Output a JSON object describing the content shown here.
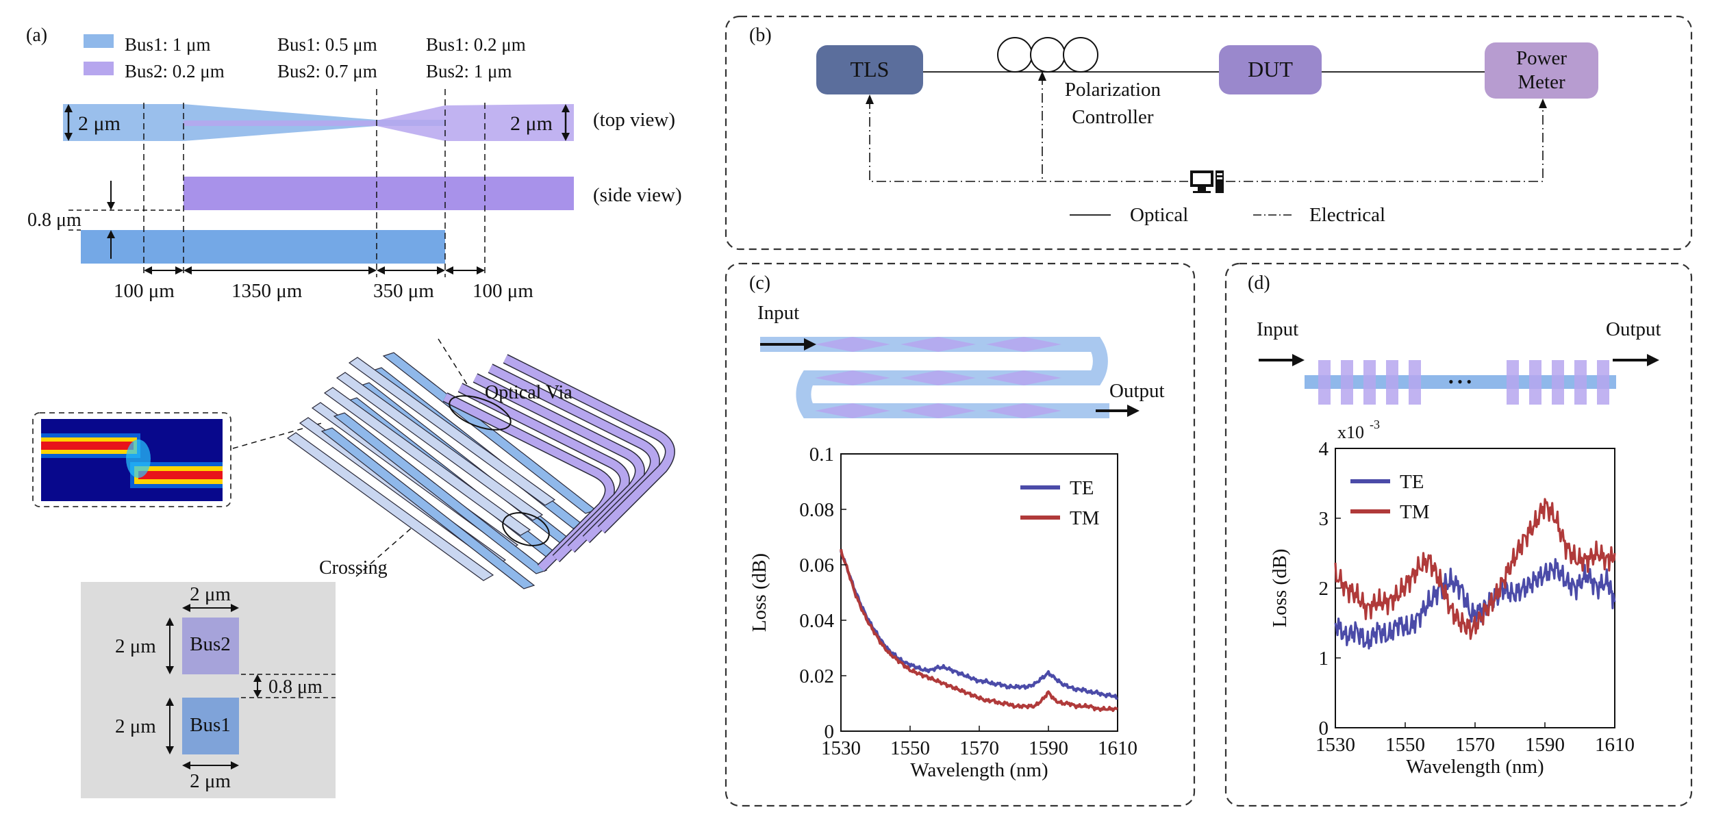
{
  "colors": {
    "bus1": "#8fb8ea",
    "bus2": "#b6a6ee",
    "side_bus2": "#a892ea",
    "side_bus1": "#74a8e6",
    "tls": "#5b6e9c",
    "dut": "#9a88cc",
    "power": "#b79cd0",
    "te": "#4b4ba8",
    "tm": "#b03a3a",
    "crossing_bg": "#dcdcdc",
    "cross_bus2": "#a6a3da",
    "cross_bus1": "#7fa3d9"
  },
  "panel_a": {
    "label": "(a)",
    "legend": {
      "bus1_items": [
        "Bus1: 1 μm",
        "Bus1: 0.5 μm",
        "Bus1: 0.2 μm"
      ],
      "bus2_items": [
        "Bus2: 0.2 μm",
        "Bus2: 0.7 μm",
        "Bus2: 1 μm"
      ]
    },
    "top_view_label": "(top view)",
    "side_view_label": "(side view)",
    "width_left": "2 μm",
    "width_right": "2 μm",
    "gap_label": "0.8 μm",
    "lengths": [
      "100 μm",
      "1350 μm",
      "350 μm",
      "100 μm"
    ],
    "optical_via_label": "Optical Via",
    "crossing_label": "Crossing",
    "crossing": {
      "width_top": "2 μm",
      "width_bottom": "2 μm",
      "height_bus2": "2 μm",
      "height_bus1": "2 μm",
      "gap": "0.8 μm",
      "bus2_label": "Bus2",
      "bus1_label": "Bus1"
    }
  },
  "panel_b": {
    "label": "(b)",
    "tls": "TLS",
    "pc_line1": "Polarization",
    "pc_line2": "Controller",
    "dut": "DUT",
    "power_line1": "Power",
    "power_line2": "Meter",
    "legend_optical": "Optical",
    "legend_electrical": "Electrical",
    "computer_icon": "computer-icon"
  },
  "panel_c": {
    "label": "(c)",
    "input": "Input",
    "output": "Output",
    "chart_data": {
      "type": "line",
      "xlabel": "Wavelength (nm)",
      "ylabel": "Loss (dB)",
      "xlim": [
        1530,
        1610
      ],
      "ylim": [
        0,
        0.1
      ],
      "xticks": [
        "1530",
        "1550",
        "1570",
        "1590",
        "1610"
      ],
      "yticks": [
        "0",
        "0.02",
        "0.04",
        "0.06",
        "0.08",
        "0.1"
      ],
      "legend_position": "top-right",
      "series": [
        {
          "name": "TE",
          "color": "#4b4ba8",
          "x": [
            1530,
            1532,
            1534,
            1536,
            1538,
            1540,
            1542,
            1544,
            1546,
            1548,
            1550,
            1552,
            1554,
            1556,
            1558,
            1560,
            1562,
            1564,
            1566,
            1568,
            1570,
            1572,
            1574,
            1576,
            1578,
            1580,
            1582,
            1584,
            1586,
            1588,
            1590,
            1592,
            1594,
            1596,
            1598,
            1600,
            1602,
            1604,
            1606,
            1608,
            1610
          ],
          "y": [
            0.065,
            0.058,
            0.051,
            0.045,
            0.04,
            0.036,
            0.032,
            0.029,
            0.027,
            0.025,
            0.024,
            0.023,
            0.022,
            0.022,
            0.023,
            0.023,
            0.022,
            0.021,
            0.02,
            0.019,
            0.018,
            0.018,
            0.017,
            0.017,
            0.016,
            0.016,
            0.016,
            0.016,
            0.017,
            0.019,
            0.021,
            0.019,
            0.017,
            0.016,
            0.015,
            0.015,
            0.014,
            0.014,
            0.013,
            0.013,
            0.012
          ]
        },
        {
          "name": "TM",
          "color": "#b03a3a",
          "x": [
            1530,
            1532,
            1534,
            1536,
            1538,
            1540,
            1542,
            1544,
            1546,
            1548,
            1550,
            1552,
            1554,
            1556,
            1558,
            1560,
            1562,
            1564,
            1566,
            1568,
            1570,
            1572,
            1574,
            1576,
            1578,
            1580,
            1582,
            1584,
            1586,
            1588,
            1590,
            1592,
            1594,
            1596,
            1598,
            1600,
            1602,
            1604,
            1606,
            1608,
            1610
          ],
          "y": [
            0.065,
            0.058,
            0.05,
            0.044,
            0.039,
            0.035,
            0.031,
            0.028,
            0.026,
            0.024,
            0.022,
            0.021,
            0.02,
            0.019,
            0.018,
            0.017,
            0.016,
            0.015,
            0.014,
            0.013,
            0.012,
            0.011,
            0.011,
            0.01,
            0.01,
            0.009,
            0.009,
            0.009,
            0.009,
            0.011,
            0.014,
            0.011,
            0.01,
            0.01,
            0.009,
            0.009,
            0.009,
            0.008,
            0.008,
            0.008,
            0.008
          ]
        }
      ]
    }
  },
  "panel_d": {
    "label": "(d)",
    "input": "Input",
    "output": "Output",
    "dots": "• • •",
    "multiplier": "x10",
    "multiplier_exp": "-3",
    "chart_data": {
      "type": "line",
      "xlabel": "Wavelength (nm)",
      "ylabel": "Loss (dB)",
      "xlim": [
        1530,
        1610
      ],
      "ylim": [
        0,
        4
      ],
      "xticks": [
        "1530",
        "1550",
        "1570",
        "1590",
        "1610"
      ],
      "yticks": [
        "0",
        "1",
        "2",
        "3",
        "4"
      ],
      "legend_position": "top-left",
      "series": [
        {
          "name": "TE",
          "color": "#4b4ba8",
          "x": [
            1530,
            1533,
            1536,
            1539,
            1542,
            1545,
            1548,
            1551,
            1554,
            1557,
            1560,
            1563,
            1566,
            1569,
            1572,
            1575,
            1578,
            1581,
            1584,
            1587,
            1590,
            1593,
            1596,
            1599,
            1602,
            1605,
            1608,
            1610
          ],
          "y": [
            1.5,
            1.3,
            1.4,
            1.2,
            1.4,
            1.3,
            1.5,
            1.4,
            1.6,
            1.8,
            2.0,
            2.1,
            2.0,
            1.6,
            1.7,
            1.8,
            2.0,
            1.9,
            2.0,
            2.1,
            2.2,
            2.3,
            2.1,
            2.0,
            2.2,
            2.0,
            2.1,
            1.8
          ]
        },
        {
          "name": "TM",
          "color": "#b03a3a",
          "x": [
            1530,
            1533,
            1536,
            1539,
            1542,
            1545,
            1548,
            1551,
            1554,
            1557,
            1560,
            1563,
            1566,
            1569,
            1572,
            1575,
            1578,
            1581,
            1584,
            1587,
            1590,
            1593,
            1596,
            1599,
            1602,
            1605,
            1608,
            1610
          ],
          "y": [
            2.2,
            2.0,
            1.9,
            1.7,
            1.8,
            1.8,
            1.9,
            2.1,
            2.3,
            2.4,
            2.1,
            1.7,
            1.5,
            1.4,
            1.6,
            1.8,
            2.1,
            2.4,
            2.7,
            2.9,
            3.2,
            3.0,
            2.6,
            2.4,
            2.4,
            2.5,
            2.4,
            2.5
          ]
        }
      ]
    }
  }
}
